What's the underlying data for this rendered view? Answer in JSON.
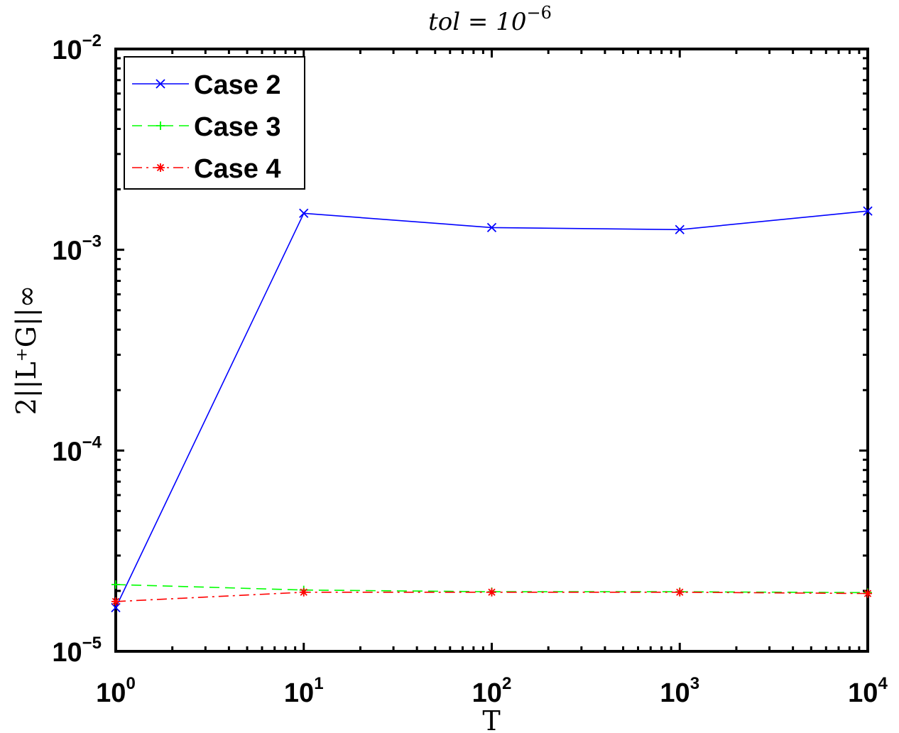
{
  "chart_data": {
    "type": "line",
    "title": "tol = 10^-6",
    "title_base": "tol = 10",
    "title_exp": "−6",
    "xlabel": "T",
    "ylabel": "2||L⁺G||∞",
    "x_scale": "log",
    "y_scale": "log",
    "xlim": [
      1,
      10000
    ],
    "ylim": [
      1e-05,
      0.01
    ],
    "x_ticks": [
      {
        "value": 1,
        "base": "10",
        "exp": "0"
      },
      {
        "value": 10,
        "base": "10",
        "exp": "1"
      },
      {
        "value": 100,
        "base": "10",
        "exp": "2"
      },
      {
        "value": 1000,
        "base": "10",
        "exp": "3"
      },
      {
        "value": 10000,
        "base": "10",
        "exp": "4"
      }
    ],
    "y_ticks": [
      {
        "value": 1e-05,
        "base": "10",
        "exp": "−5"
      },
      {
        "value": 0.0001,
        "base": "10",
        "exp": "−4"
      },
      {
        "value": 0.001,
        "base": "10",
        "exp": "−3"
      },
      {
        "value": 0.01,
        "base": "10",
        "exp": "−2"
      }
    ],
    "grid": false,
    "legend_position": "top-left",
    "x": [
      1,
      10,
      100,
      1000,
      10000
    ],
    "series": [
      {
        "name": "Case 2",
        "color": "#0000ff",
        "line_style": "solid",
        "marker": "x",
        "values": [
          1.65e-05,
          0.00152,
          0.00129,
          0.00126,
          0.00156
        ]
      },
      {
        "name": "Case 3",
        "color": "#00ff00",
        "line_style": "dashed",
        "marker": "+",
        "values": [
          2.15e-05,
          2.02e-05,
          1.98e-05,
          1.98e-05,
          1.96e-05
        ]
      },
      {
        "name": "Case 4",
        "color": "#ff0000",
        "line_style": "dashdot",
        "marker": "*",
        "values": [
          1.77e-05,
          1.97e-05,
          1.97e-05,
          1.97e-05,
          1.94e-05
        ]
      }
    ]
  }
}
